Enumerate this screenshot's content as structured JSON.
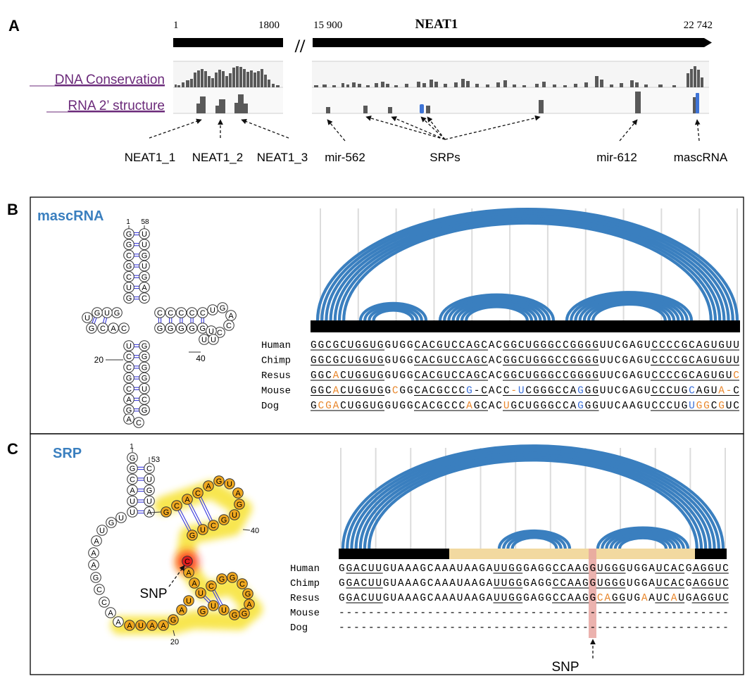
{
  "panel_a": {
    "label": "A",
    "title": "NEAT1",
    "coord_start": "1",
    "coord_1800": "1800",
    "coord_15900": "15 900",
    "coord_end": "22 742",
    "break_symbol": "//",
    "track_labels": [
      "DNA Conservation",
      "RNA 2’ structure"
    ],
    "feature_labels": [
      "NEAT1_1",
      "NEAT1_2",
      "NEAT1_3",
      "mir-562",
      "SRPs",
      "mir-612",
      "mascRNA"
    ],
    "colors": {
      "track_label": "#6b2a7a",
      "bars": "#595959",
      "highlight": "#3f74d6",
      "track_bg": "#ececec"
    }
  },
  "panel_b": {
    "label": "B",
    "title": "mascRNA",
    "structure_numbers": [
      "1",
      "58",
      "20",
      "40"
    ],
    "species": [
      "Human",
      "Chimp",
      "Resus",
      "Mouse",
      "Dog"
    ],
    "sequences": [
      "GGCGCUGGUGGUGGCACGUCCAGCACGGCUGGGCCGGGGUUCGAGUCCCCGCAGUGUU",
      "GGCGCUGGUGGUGGCACGUCCAGCACGGCUGGGCCGGGGUUCGAGUCCCCGCAGUGUU",
      "GGCACUGGUGGUGGCACGUCCAGCACGGCUGGGCCGGGGUUCGAGUCCCCGCAGUGUC",
      "GGCACUGGUGGCGGCACGCCCG-CACC-UCGGGCCAGGGUUCGAGUCCCUGCAGUA-C",
      "GCGACUGGUGGUGGCACGCCCAGCACUGCUGGGCCAGGGUUCAAGUCCCUGUGGCGUC"
    ],
    "colors": {
      "arc": "#3a7fbf",
      "title": "#3a7fbf",
      "orange": "#e8872d",
      "blue": "#3a6fd8"
    }
  },
  "panel_c": {
    "label": "C",
    "title": "SRP",
    "structure_numbers": [
      "1",
      "53",
      "40",
      "20"
    ],
    "snp_label": "SNP",
    "species": [
      "Human",
      "Chimp",
      "Resus",
      "Mouse",
      "Dog"
    ],
    "sequences": [
      "GGACUUGUAAAGCAAAUAAGAUUGGGAGGCCAAGGUGGGUGGAUCACGAGGUC",
      "GGACUUGUAAAGCAAAUAAGAUUGGGAGGCCAAGGUGGGUGGAUCACGAGGUC",
      "GGACUUGUAAAGCAAAUAAGAUUGGGAGGCCAAGGCAGGUGAAUCAUGAGGUC",
      "-----------------------------------------------------",
      "-----------------------------------------------------"
    ],
    "colors": {
      "arc": "#3a7fbf",
      "title": "#3a7fbf",
      "region": "#f2d9a0",
      "snp_bar": "#e8a5a0",
      "highlight_node": "#f0a81e",
      "snp_node": "#e21c1c"
    }
  }
}
